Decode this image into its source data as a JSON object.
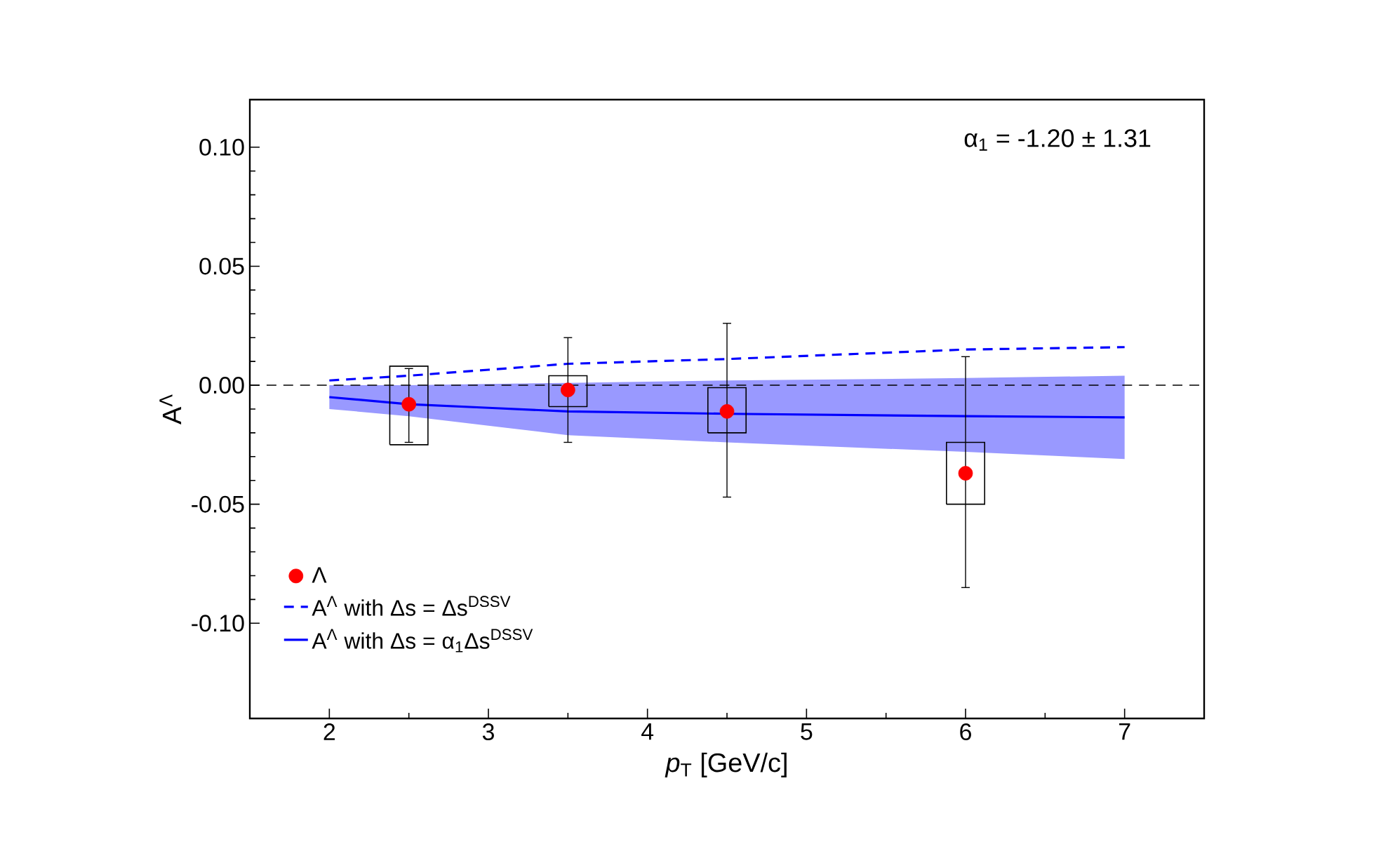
{
  "chart_data": {
    "type": "scatter",
    "xlabel": "*p*$_{T}$ [GeV/c]",
    "ylabel": "A$^{Λ}$",
    "xlim": [
      1.5,
      7.5
    ],
    "xticks": [
      2,
      3,
      4,
      5,
      6,
      7
    ],
    "ylim": [
      -0.14,
      0.12
    ],
    "yticks": [
      {
        "value": -0.1,
        "label": "-0.10"
      },
      {
        "value": -0.05,
        "label": "-0.05"
      },
      {
        "value": 0,
        "label": "0.00"
      },
      {
        "value": 0.05,
        "label": "0.05"
      },
      {
        "value": 0.1,
        "label": "0.10"
      }
    ],
    "grid": false,
    "legend": "bottom left",
    "annotations": [
      "α$_{1}$ = -1.20 ± 1.31"
    ],
    "ref_lines": [
      {
        "axis": "y",
        "value": 0,
        "color": "#000000",
        "line_style": "dashed"
      }
    ],
    "series": [
      {
        "type": "line",
        "name": "A$^{Λ}$ with Δs = α$_{1}$Δs$^{DSSV}$",
        "color": "#0000ff",
        "line_style": "solid",
        "marker": "none",
        "x": [
          2,
          2.5,
          3,
          3.5,
          4.5,
          6,
          7
        ],
        "values": [
          -0.005,
          -0.008,
          -0.0095,
          -0.011,
          -0.012,
          -0.013,
          -0.0135
        ],
        "lower": [
          -0.01,
          -0.013,
          -0.017,
          -0.021,
          -0.024,
          -0.028,
          -0.031
        ],
        "upper": [
          0.0,
          0.0,
          0.0005,
          0.001,
          0.002,
          0.003,
          0.004
        ]
      },
      {
        "type": "line",
        "name": "A$^{Λ}$ with Δs = Δs$^{DSSV}$",
        "color": "#0000ff",
        "line_style": "dashed",
        "marker": "none",
        "x": [
          2,
          2.5,
          3,
          3.5,
          4.5,
          6,
          7
        ],
        "values": [
          0.002,
          0.004,
          0.0065,
          0.009,
          0.011,
          0.015,
          0.016
        ]
      },
      {
        "type": "bar",
        "color": "#000000",
        "x": [
          2.5,
          3.5,
          4.5,
          6
        ],
        "base": [
          -0.025,
          -0.009,
          -0.02,
          -0.05
        ],
        "values": [
          0.033,
          0.013,
          0.019,
          0.026
        ]
      },
      {
        "name": "Λ",
        "color": "#ff0000",
        "marker": "circle",
        "x": [
          2.5,
          3.5,
          4.5,
          6
        ],
        "values": [
          -0.008,
          -0.002,
          -0.011,
          -0.037
        ],
        "errors": [
          [
            -0.024,
            0.007
          ],
          [
            -0.024,
            0.02
          ],
          [
            -0.047,
            0.026
          ],
          [
            -0.085,
            0.012
          ]
        ]
      }
    ]
  }
}
